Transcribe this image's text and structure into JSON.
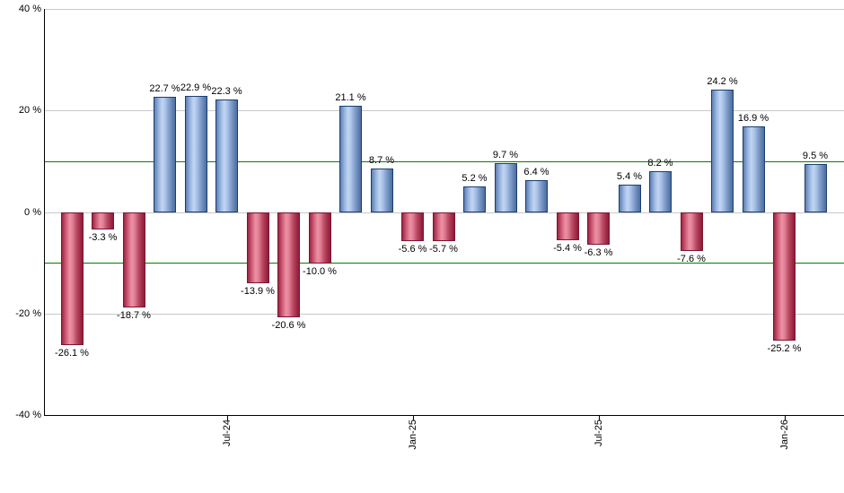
{
  "chart_data": {
    "type": "bar",
    "title": "",
    "ylim": [
      -40,
      40
    ],
    "grid": true,
    "legend": "none",
    "y_ticks": [
      {
        "value": 40,
        "label": "40 %"
      },
      {
        "value": 20,
        "label": "20 %"
      },
      {
        "value": 0,
        "label": "0 %"
      },
      {
        "value": -20,
        "label": "-20 %"
      },
      {
        "value": -40,
        "label": "-40 %"
      }
    ],
    "x_ticks": [
      {
        "label": "Jul-24",
        "bar_index": 5
      },
      {
        "label": "Jan-25",
        "bar_index": 11
      },
      {
        "label": "Jul-25",
        "bar_index": 17
      },
      {
        "label": "Jan-26",
        "bar_index": 23
      }
    ],
    "reference_lines": [
      {
        "value": 10
      },
      {
        "value": -10
      }
    ],
    "bars": [
      {
        "value": -26.1,
        "label": "-26.1 %"
      },
      {
        "value": -3.3,
        "label": "-3.3 %"
      },
      {
        "value": -18.7,
        "label": "-18.7 %"
      },
      {
        "value": 22.7,
        "label": "22.7 %"
      },
      {
        "value": 22.9,
        "label": "22.9 %"
      },
      {
        "value": 22.3,
        "label": "22.3 %"
      },
      {
        "value": -13.9,
        "label": "-13.9 %"
      },
      {
        "value": -20.6,
        "label": "-20.6 %"
      },
      {
        "value": -10.0,
        "label": "-10.0 %"
      },
      {
        "value": 21.1,
        "label": "21.1 %"
      },
      {
        "value": 8.7,
        "label": "8.7 %"
      },
      {
        "value": -5.6,
        "label": "-5.6 %"
      },
      {
        "value": -5.7,
        "label": "-5.7 %"
      },
      {
        "value": 5.2,
        "label": "5.2 %"
      },
      {
        "value": 9.7,
        "label": "9.7 %"
      },
      {
        "value": 6.4,
        "label": "6.4 %"
      },
      {
        "value": -5.4,
        "label": "-5.4 %"
      },
      {
        "value": -6.3,
        "label": "-6.3 %"
      },
      {
        "value": 5.4,
        "label": "5.4 %"
      },
      {
        "value": 8.2,
        "label": "8.2 %"
      },
      {
        "value": -7.6,
        "label": "-7.6 %"
      },
      {
        "value": 24.2,
        "label": "24.2 %"
      },
      {
        "value": 16.9,
        "label": "16.9 %"
      },
      {
        "value": -25.2,
        "label": "-25.2 %"
      },
      {
        "value": 9.5,
        "label": "9.5 %"
      }
    ],
    "colors": {
      "positive_bar": "#7b9ccb",
      "positive_bar_border": "#1c3d6e",
      "negative_bar": "#c24a66",
      "negative_bar_border": "#7c1530",
      "reference_line": "#008000",
      "gridline": "#c9c9c9",
      "axis": "#000000",
      "label_text": "#000000",
      "background": "#ffffff"
    }
  }
}
